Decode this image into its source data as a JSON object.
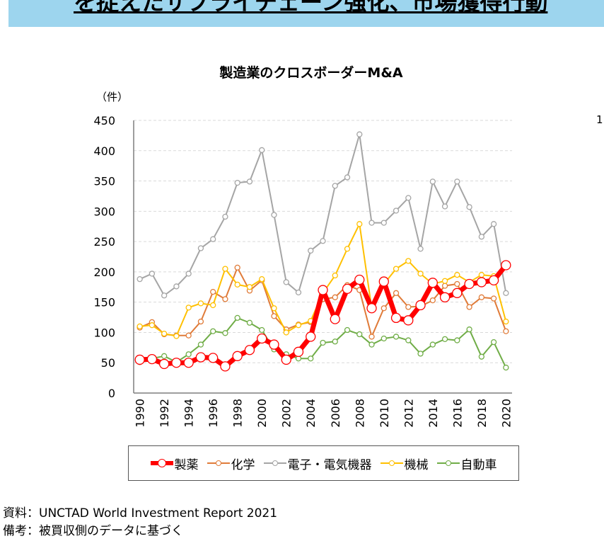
{
  "banner": {
    "text": "を捉えたサプライチェーン強化、市場獲得行動"
  },
  "side_number": "1",
  "chart_data": {
    "type": "line",
    "title": "製造業のクロスボーダーM&A",
    "ylabel": "（件）",
    "xlabel": "",
    "ylim": [
      0,
      450
    ],
    "yticks": [
      0,
      50,
      100,
      150,
      200,
      250,
      300,
      350,
      400,
      450
    ],
    "x": [
      1990,
      1991,
      1992,
      1993,
      1994,
      1995,
      1996,
      1997,
      1998,
      1999,
      2000,
      2001,
      2002,
      2003,
      2004,
      2005,
      2006,
      2007,
      2008,
      2009,
      2010,
      2011,
      2012,
      2013,
      2014,
      2015,
      2016,
      2017,
      2018,
      2019,
      2020
    ],
    "xticks": [
      1990,
      1992,
      1994,
      1996,
      1998,
      2000,
      2002,
      2004,
      2006,
      2008,
      2010,
      2012,
      2014,
      2016,
      2018,
      2020
    ],
    "grid": "horizontal dashed",
    "legend_placement": "bottom",
    "series": [
      {
        "name": "製薬",
        "color": "#ff0000",
        "emphasis": true,
        "values": [
          55,
          56,
          48,
          50,
          50,
          59,
          58,
          44,
          61,
          71,
          90,
          80,
          55,
          68,
          93,
          170,
          122,
          172,
          187,
          140,
          184,
          124,
          120,
          145,
          182,
          158,
          165,
          180,
          183,
          186,
          211
        ]
      },
      {
        "name": "化学",
        "color": "#e07b39",
        "values": [
          108,
          117,
          97,
          95,
          95,
          118,
          167,
          155,
          207,
          169,
          186,
          127,
          105,
          113,
          117,
          155,
          158,
          178,
          170,
          93,
          140,
          165,
          142,
          143,
          153,
          177,
          180,
          142,
          158,
          156,
          102
        ]
      },
      {
        "name": "電子・電気機器",
        "color": "#a5a5a5",
        "values": [
          188,
          197,
          161,
          176,
          197,
          239,
          254,
          291,
          347,
          349,
          401,
          294,
          183,
          166,
          235,
          251,
          342,
          356,
          427,
          281,
          281,
          301,
          322,
          238,
          349,
          308,
          349,
          307,
          258,
          279,
          165
        ]
      },
      {
        "name": "機械",
        "color": "#ffc000",
        "values": [
          110,
          112,
          98,
          94,
          141,
          148,
          145,
          205,
          179,
          175,
          188,
          140,
          100,
          112,
          119,
          165,
          194,
          238,
          279,
          140,
          180,
          205,
          218,
          197,
          180,
          185,
          195,
          183,
          195,
          193,
          118
        ]
      },
      {
        "name": "自動車",
        "color": "#70ad47",
        "values": [
          51,
          57,
          61,
          51,
          64,
          80,
          102,
          99,
          124,
          116,
          104,
          72,
          64,
          57,
          57,
          83,
          85,
          104,
          97,
          80,
          90,
          93,
          87,
          65,
          80,
          89,
          87,
          105,
          60,
          84,
          42
        ]
      }
    ]
  },
  "footnotes": {
    "source": "資料：UNCTAD World Investment Report 2021",
    "note": "備考：被買収側のデータに基づく"
  }
}
